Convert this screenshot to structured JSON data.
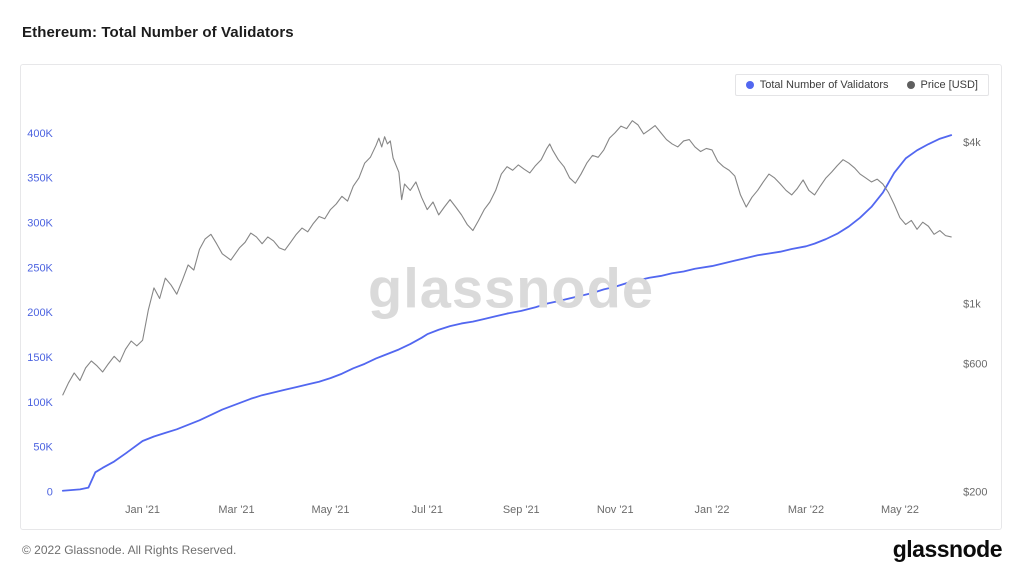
{
  "page": {
    "title": "Ethereum: Total Number of Validators",
    "watermark": "glassnode",
    "footer_copyright": "© 2022 Glassnode. All Rights Reserved.",
    "footer_logo": "glassnode"
  },
  "legend": {
    "items": [
      {
        "label": "Total Number of Validators",
        "color": "#5267f0"
      },
      {
        "label": "Price [USD]",
        "color": "#5f5f5f"
      }
    ]
  },
  "chart_data": {
    "type": "line",
    "title": "Ethereum: Total Number of Validators",
    "grid": false,
    "legend_position": "top-right",
    "x_range": [
      2020.86,
      2022.42
    ],
    "x_ticks": [
      {
        "t": 2021.0,
        "label": "Jan '21"
      },
      {
        "t": 2021.165,
        "label": "Mar '21"
      },
      {
        "t": 2021.33,
        "label": "May '21"
      },
      {
        "t": 2021.5,
        "label": "Jul '21"
      },
      {
        "t": 2021.665,
        "label": "Sep '21"
      },
      {
        "t": 2021.83,
        "label": "Nov '21"
      },
      {
        "t": 2022.0,
        "label": "Jan '22"
      },
      {
        "t": 2022.165,
        "label": "Mar '22"
      },
      {
        "t": 2022.33,
        "label": "May '22"
      }
    ],
    "left_axis": {
      "name": "Total Number of Validators",
      "scale": "linear",
      "range": [
        0,
        425000
      ],
      "color": "#4c63e0",
      "ticks": [
        {
          "v": 0,
          "label": "0"
        },
        {
          "v": 50000,
          "label": "50K"
        },
        {
          "v": 100000,
          "label": "100K"
        },
        {
          "v": 150000,
          "label": "150K"
        },
        {
          "v": 200000,
          "label": "200K"
        },
        {
          "v": 250000,
          "label": "250K"
        },
        {
          "v": 300000,
          "label": "300K"
        },
        {
          "v": 350000,
          "label": "350K"
        },
        {
          "v": 400000,
          "label": "400K"
        }
      ]
    },
    "right_axis": {
      "name": "Price [USD]",
      "scale": "log",
      "range": [
        200,
        5240
      ],
      "color": "#6a6a6a",
      "ticks": [
        {
          "v": 200,
          "label": "$200"
        },
        {
          "v": 600,
          "label": "$600"
        },
        {
          "v": 1000,
          "label": "$1k"
        },
        {
          "v": 4000,
          "label": "$4k"
        }
      ]
    },
    "series": [
      {
        "name": "Total Number of Validators",
        "axis": "left",
        "color": "#5267f0",
        "width": 1.8,
        "points": [
          [
            2020.86,
            1500
          ],
          [
            2020.89,
            3000
          ],
          [
            2020.905,
            5000
          ],
          [
            2020.917,
            22000
          ],
          [
            2020.93,
            27000
          ],
          [
            2020.95,
            34000
          ],
          [
            2020.97,
            43000
          ],
          [
            2021.0,
            57000
          ],
          [
            2021.02,
            62000
          ],
          [
            2021.04,
            66000
          ],
          [
            2021.06,
            70000
          ],
          [
            2021.08,
            75000
          ],
          [
            2021.1,
            80000
          ],
          [
            2021.12,
            86000
          ],
          [
            2021.14,
            92000
          ],
          [
            2021.165,
            98000
          ],
          [
            2021.19,
            104000
          ],
          [
            2021.21,
            108000
          ],
          [
            2021.23,
            111000
          ],
          [
            2021.25,
            114000
          ],
          [
            2021.27,
            117000
          ],
          [
            2021.29,
            120000
          ],
          [
            2021.31,
            123000
          ],
          [
            2021.33,
            127000
          ],
          [
            2021.35,
            132000
          ],
          [
            2021.37,
            138000
          ],
          [
            2021.39,
            143000
          ],
          [
            2021.41,
            149000
          ],
          [
            2021.43,
            154000
          ],
          [
            2021.45,
            159000
          ],
          [
            2021.47,
            165000
          ],
          [
            2021.49,
            172000
          ],
          [
            2021.5,
            176000
          ],
          [
            2021.52,
            181000
          ],
          [
            2021.54,
            185000
          ],
          [
            2021.56,
            188000
          ],
          [
            2021.58,
            190000
          ],
          [
            2021.6,
            193000
          ],
          [
            2021.62,
            196000
          ],
          [
            2021.64,
            199000
          ],
          [
            2021.665,
            202000
          ],
          [
            2021.69,
            206000
          ],
          [
            2021.71,
            210000
          ],
          [
            2021.73,
            213000
          ],
          [
            2021.75,
            216000
          ],
          [
            2021.77,
            219000
          ],
          [
            2021.79,
            222000
          ],
          [
            2021.81,
            226000
          ],
          [
            2021.83,
            229000
          ],
          [
            2021.85,
            233000
          ],
          [
            2021.87,
            236000
          ],
          [
            2021.89,
            239000
          ],
          [
            2021.91,
            241000
          ],
          [
            2021.93,
            244000
          ],
          [
            2021.95,
            246000
          ],
          [
            2021.97,
            249000
          ],
          [
            2022.0,
            252000
          ],
          [
            2022.02,
            255000
          ],
          [
            2022.04,
            258000
          ],
          [
            2022.06,
            261000
          ],
          [
            2022.08,
            264000
          ],
          [
            2022.1,
            266000
          ],
          [
            2022.12,
            268000
          ],
          [
            2022.14,
            271000
          ],
          [
            2022.165,
            274000
          ],
          [
            2022.18,
            277000
          ],
          [
            2022.2,
            282000
          ],
          [
            2022.22,
            288000
          ],
          [
            2022.24,
            296000
          ],
          [
            2022.26,
            306000
          ],
          [
            2022.28,
            318000
          ],
          [
            2022.3,
            334000
          ],
          [
            2022.32,
            356000
          ],
          [
            2022.34,
            372000
          ],
          [
            2022.36,
            381000
          ],
          [
            2022.38,
            388000
          ],
          [
            2022.4,
            394000
          ],
          [
            2022.42,
            398000
          ]
        ]
      },
      {
        "name": "Price [USD]",
        "axis": "right",
        "color": "#868686",
        "width": 1.1,
        "points": [
          [
            2020.86,
            460
          ],
          [
            2020.87,
            510
          ],
          [
            2020.88,
            555
          ],
          [
            2020.89,
            520
          ],
          [
            2020.9,
            580
          ],
          [
            2020.91,
            615
          ],
          [
            2020.92,
            590
          ],
          [
            2020.93,
            560
          ],
          [
            2020.94,
            600
          ],
          [
            2020.95,
            640
          ],
          [
            2020.96,
            610
          ],
          [
            2020.97,
            680
          ],
          [
            2020.98,
            730
          ],
          [
            2020.99,
            700
          ],
          [
            2021.0,
            735
          ],
          [
            2021.01,
            950
          ],
          [
            2021.02,
            1150
          ],
          [
            2021.03,
            1050
          ],
          [
            2021.04,
            1250
          ],
          [
            2021.05,
            1180
          ],
          [
            2021.06,
            1090
          ],
          [
            2021.07,
            1230
          ],
          [
            2021.08,
            1400
          ],
          [
            2021.09,
            1340
          ],
          [
            2021.1,
            1600
          ],
          [
            2021.11,
            1750
          ],
          [
            2021.12,
            1820
          ],
          [
            2021.13,
            1680
          ],
          [
            2021.14,
            1540
          ],
          [
            2021.155,
            1460
          ],
          [
            2021.17,
            1620
          ],
          [
            2021.18,
            1700
          ],
          [
            2021.19,
            1840
          ],
          [
            2021.2,
            1780
          ],
          [
            2021.21,
            1680
          ],
          [
            2021.22,
            1780
          ],
          [
            2021.23,
            1720
          ],
          [
            2021.24,
            1620
          ],
          [
            2021.25,
            1590
          ],
          [
            2021.26,
            1700
          ],
          [
            2021.27,
            1820
          ],
          [
            2021.28,
            1920
          ],
          [
            2021.29,
            1860
          ],
          [
            2021.3,
            2000
          ],
          [
            2021.31,
            2120
          ],
          [
            2021.32,
            2080
          ],
          [
            2021.33,
            2250
          ],
          [
            2021.34,
            2360
          ],
          [
            2021.35,
            2520
          ],
          [
            2021.36,
            2420
          ],
          [
            2021.37,
            2750
          ],
          [
            2021.38,
            2950
          ],
          [
            2021.39,
            3350
          ],
          [
            2021.4,
            3520
          ],
          [
            2021.41,
            3900
          ],
          [
            2021.415,
            4150
          ],
          [
            2021.42,
            3850
          ],
          [
            2021.425,
            4200
          ],
          [
            2021.43,
            3950
          ],
          [
            2021.435,
            4050
          ],
          [
            2021.44,
            3500
          ],
          [
            2021.45,
            3100
          ],
          [
            2021.455,
            2450
          ],
          [
            2021.46,
            2800
          ],
          [
            2021.47,
            2650
          ],
          [
            2021.48,
            2850
          ],
          [
            2021.49,
            2500
          ],
          [
            2021.5,
            2250
          ],
          [
            2021.51,
            2400
          ],
          [
            2021.52,
            2150
          ],
          [
            2021.53,
            2300
          ],
          [
            2021.54,
            2450
          ],
          [
            2021.55,
            2300
          ],
          [
            2021.56,
            2150
          ],
          [
            2021.57,
            1980
          ],
          [
            2021.58,
            1880
          ],
          [
            2021.59,
            2050
          ],
          [
            2021.6,
            2250
          ],
          [
            2021.61,
            2400
          ],
          [
            2021.62,
            2650
          ],
          [
            2021.63,
            3050
          ],
          [
            2021.64,
            3250
          ],
          [
            2021.65,
            3150
          ],
          [
            2021.66,
            3300
          ],
          [
            2021.67,
            3180
          ],
          [
            2021.68,
            3080
          ],
          [
            2021.69,
            3280
          ],
          [
            2021.7,
            3450
          ],
          [
            2021.71,
            3800
          ],
          [
            2021.715,
            3950
          ],
          [
            2021.72,
            3750
          ],
          [
            2021.73,
            3450
          ],
          [
            2021.74,
            3250
          ],
          [
            2021.75,
            2950
          ],
          [
            2021.76,
            2820
          ],
          [
            2021.77,
            3050
          ],
          [
            2021.78,
            3350
          ],
          [
            2021.79,
            3580
          ],
          [
            2021.8,
            3520
          ],
          [
            2021.81,
            3750
          ],
          [
            2021.82,
            4150
          ],
          [
            2021.83,
            4350
          ],
          [
            2021.84,
            4600
          ],
          [
            2021.85,
            4500
          ],
          [
            2021.86,
            4820
          ],
          [
            2021.87,
            4650
          ],
          [
            2021.88,
            4300
          ],
          [
            2021.89,
            4450
          ],
          [
            2021.9,
            4620
          ],
          [
            2021.91,
            4350
          ],
          [
            2021.92,
            4100
          ],
          [
            2021.93,
            3950
          ],
          [
            2021.94,
            3850
          ],
          [
            2021.95,
            4050
          ],
          [
            2021.96,
            4100
          ],
          [
            2021.97,
            3850
          ],
          [
            2021.98,
            3700
          ],
          [
            2021.99,
            3800
          ],
          [
            2022.0,
            3750
          ],
          [
            2022.01,
            3400
          ],
          [
            2022.02,
            3250
          ],
          [
            2022.03,
            3150
          ],
          [
            2022.04,
            3000
          ],
          [
            2022.05,
            2550
          ],
          [
            2022.06,
            2300
          ],
          [
            2022.07,
            2500
          ],
          [
            2022.08,
            2650
          ],
          [
            2022.09,
            2850
          ],
          [
            2022.1,
            3050
          ],
          [
            2022.11,
            2950
          ],
          [
            2022.12,
            2800
          ],
          [
            2022.13,
            2650
          ],
          [
            2022.14,
            2550
          ],
          [
            2022.15,
            2700
          ],
          [
            2022.16,
            2900
          ],
          [
            2022.17,
            2650
          ],
          [
            2022.18,
            2550
          ],
          [
            2022.19,
            2750
          ],
          [
            2022.2,
            2950
          ],
          [
            2022.21,
            3100
          ],
          [
            2022.22,
            3280
          ],
          [
            2022.23,
            3450
          ],
          [
            2022.24,
            3350
          ],
          [
            2022.25,
            3220
          ],
          [
            2022.26,
            3050
          ],
          [
            2022.27,
            2950
          ],
          [
            2022.28,
            2850
          ],
          [
            2022.29,
            2920
          ],
          [
            2022.3,
            2800
          ],
          [
            2022.31,
            2600
          ],
          [
            2022.32,
            2350
          ],
          [
            2022.33,
            2100
          ],
          [
            2022.34,
            1980
          ],
          [
            2022.35,
            2050
          ],
          [
            2022.36,
            1900
          ],
          [
            2022.37,
            2020
          ],
          [
            2022.38,
            1950
          ],
          [
            2022.39,
            1820
          ],
          [
            2022.4,
            1880
          ],
          [
            2022.41,
            1800
          ],
          [
            2022.42,
            1780
          ]
        ]
      }
    ]
  }
}
